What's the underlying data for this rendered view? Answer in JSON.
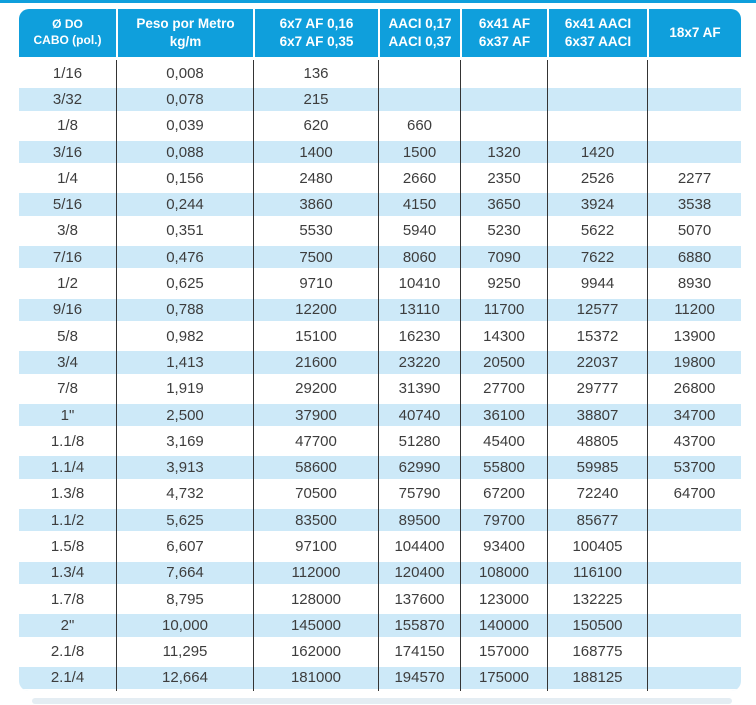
{
  "colors": {
    "accent": "#0f9fdc",
    "stripe": "#cde9f8",
    "text": "#3d3d3d"
  },
  "table": {
    "columns": [
      {
        "id": "cable-diameter",
        "label_lines": [
          "Ø DO",
          "CABO (pol.)"
        ]
      },
      {
        "id": "weight-per-meter",
        "label_lines": [
          "Peso por Metro",
          "kg/m"
        ]
      },
      {
        "id": "6x7-af",
        "label_lines": [
          "6x7 AF 0,16",
          "6x7 AF 0,35"
        ]
      },
      {
        "id": "aaci",
        "label_lines": [
          "AACI 0,17",
          "AACI 0,37"
        ]
      },
      {
        "id": "6x41-af",
        "label_lines": [
          "6x41 AF",
          "6x37 AF"
        ]
      },
      {
        "id": "6x41-aaci",
        "label_lines": [
          "6x41 AACI",
          "6x37 AACI"
        ]
      },
      {
        "id": "18x7-af",
        "label_lines": [
          "18x7 AF"
        ]
      }
    ],
    "rows": [
      [
        "1/16",
        "0,008",
        "136",
        "",
        "",
        "",
        ""
      ],
      [
        "3/32",
        "0,078",
        "215",
        "",
        "",
        "",
        ""
      ],
      [
        "1/8",
        "0,039",
        "620",
        "660",
        "",
        "",
        ""
      ],
      [
        "3/16",
        "0,088",
        "1400",
        "1500",
        "1320",
        "1420",
        ""
      ],
      [
        "1/4",
        "0,156",
        "2480",
        "2660",
        "2350",
        "2526",
        "2277"
      ],
      [
        "5/16",
        "0,244",
        "3860",
        "4150",
        "3650",
        "3924",
        "3538"
      ],
      [
        "3/8",
        "0,351",
        "5530",
        "5940",
        "5230",
        "5622",
        "5070"
      ],
      [
        "7/16",
        "0,476",
        "7500",
        "8060",
        "7090",
        "7622",
        "6880"
      ],
      [
        "1/2",
        "0,625",
        "9710",
        "10410",
        "9250",
        "9944",
        "8930"
      ],
      [
        "9/16",
        "0,788",
        "12200",
        "13110",
        "11700",
        "12577",
        "11200"
      ],
      [
        "5/8",
        "0,982",
        "15100",
        "16230",
        "14300",
        "15372",
        "13900"
      ],
      [
        "3/4",
        "1,413",
        "21600",
        "23220",
        "20500",
        "22037",
        "19800"
      ],
      [
        "7/8",
        "1,919",
        "29200",
        "31390",
        "27700",
        "29777",
        "26800"
      ],
      [
        "1\"",
        "2,500",
        "37900",
        "40740",
        "36100",
        "38807",
        "34700"
      ],
      [
        "1.1/8",
        "3,169",
        "47700",
        "51280",
        "45400",
        "48805",
        "43700"
      ],
      [
        "1.1/4",
        "3,913",
        "58600",
        "62990",
        "55800",
        "59985",
        "53700"
      ],
      [
        "1.3/8",
        "4,732",
        "70500",
        "75790",
        "67200",
        "72240",
        "64700"
      ],
      [
        "1.1/2",
        "5,625",
        "83500",
        "89500",
        "79700",
        "85677",
        ""
      ],
      [
        "1.5/8",
        "6,607",
        "97100",
        "104400",
        "93400",
        "100405",
        ""
      ],
      [
        "1.3/4",
        "7,664",
        "112000",
        "120400",
        "108000",
        "116100",
        ""
      ],
      [
        "1.7/8",
        "8,795",
        "128000",
        "137600",
        "123000",
        "132225",
        ""
      ],
      [
        "2\"",
        "10,000",
        "145000",
        "155870",
        "140000",
        "150500",
        ""
      ],
      [
        "2.1/8",
        "11,295",
        "162000",
        "174150",
        "157000",
        "168775",
        ""
      ],
      [
        "2.1/4",
        "12,664",
        "181000",
        "194570",
        "175000",
        "188125",
        ""
      ]
    ]
  }
}
